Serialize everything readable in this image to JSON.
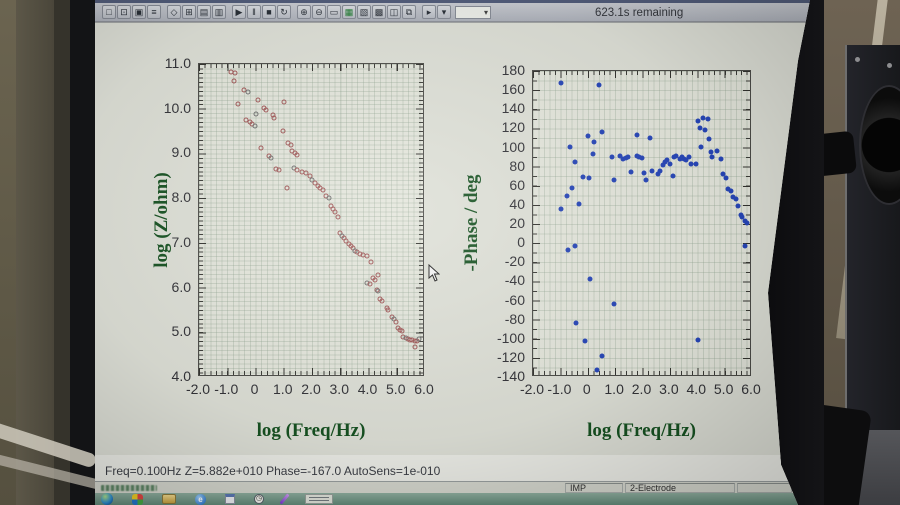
{
  "window": {
    "progress_text": "623.1s remaining",
    "status_text": "Freq=0.100Hz  Z=5.882e+010  Phase=-167.0  AutoSens=1e-010",
    "footer": {
      "left_field": "IMP",
      "right_field": "2-Electrode"
    }
  },
  "toolbar": {
    "buttons": [
      {
        "name": "new-button",
        "glyph": "□"
      },
      {
        "name": "open-button",
        "glyph": "⊡"
      },
      {
        "name": "save-button",
        "glyph": "▣"
      },
      {
        "name": "print-button",
        "glyph": "≡",
        "gap_after": true
      },
      {
        "name": "profile-button",
        "glyph": "◇"
      },
      {
        "name": "setup-button",
        "glyph": "⊞"
      },
      {
        "name": "cell-button",
        "glyph": "▤"
      },
      {
        "name": "meter-button",
        "glyph": "▥",
        "gap_after": true
      },
      {
        "name": "run-button",
        "glyph": "▶"
      },
      {
        "name": "pause-button",
        "glyph": "‖"
      },
      {
        "name": "stop-button",
        "glyph": "■"
      },
      {
        "name": "repeat-button",
        "glyph": "↻",
        "gap_after": true
      },
      {
        "name": "zoom-in-button",
        "glyph": "⊕"
      },
      {
        "name": "zoom-out-button",
        "glyph": "⊖"
      },
      {
        "name": "axes-button",
        "glyph": "▭"
      },
      {
        "name": "overlay-button",
        "glyph": "▦",
        "color": "#1d7a2e"
      },
      {
        "name": "hatch-graph-button",
        "glyph": "▧"
      },
      {
        "name": "grid-graph-button",
        "glyph": "▩"
      },
      {
        "name": "tile-button",
        "glyph": "◫"
      },
      {
        "name": "copy-button",
        "glyph": "⧉",
        "gap_after": true
      },
      {
        "name": "info-button",
        "glyph": "▸"
      },
      {
        "name": "options-button",
        "glyph": "▾"
      }
    ],
    "dropdown_glyph": "▾"
  },
  "taskbar": {
    "icons": [
      {
        "name": "start-button",
        "style": "orb",
        "glyph": ""
      },
      {
        "name": "media-player-icon",
        "style": "media",
        "glyph": ""
      },
      {
        "name": "folder-icon",
        "style": "folder",
        "glyph": ""
      },
      {
        "name": "browser-icon",
        "style": "globe",
        "glyph": "e"
      },
      {
        "name": "notepad-icon",
        "style": "windowic",
        "glyph": ""
      },
      {
        "name": "clock-icon",
        "style": "clock",
        "glyph": "◷"
      },
      {
        "name": "pen-icon",
        "style": "pen",
        "glyph": ""
      },
      {
        "name": "tray-widget",
        "style": "chip",
        "glyph": ""
      }
    ]
  },
  "chart_data": [
    {
      "type": "scatter",
      "title": "",
      "xlabel": "log (Freq/Hz)",
      "ylabel": "log (Z/ohm)",
      "xlim": [
        -2.0,
        6.0
      ],
      "ylim": [
        4.0,
        11.0
      ],
      "xticks": [
        "-2.0",
        "-1.0",
        "0",
        "1.0",
        "2.0",
        "3.0",
        "4.0",
        "5.0",
        "6.0"
      ],
      "yticks": [
        "11.0",
        "10.0",
        "9.0",
        "8.0",
        "7.0",
        "6.0",
        "5.0",
        "4.0"
      ],
      "grid": true,
      "legend": "none",
      "marker": "open",
      "color": "#a05656",
      "alt_color": "#6f6f6f",
      "points": [
        [
          -0.85,
          10.82
        ],
        [
          -0.72,
          10.8
        ],
        [
          -0.76,
          10.62
        ],
        [
          -0.4,
          10.42
        ],
        [
          -0.25,
          10.36
        ],
        [
          -0.6,
          10.1
        ],
        [
          0.1,
          10.19
        ],
        [
          0.33,
          10.01
        ],
        [
          0.41,
          9.96
        ],
        [
          1.04,
          10.15
        ],
        [
          0.04,
          9.87
        ],
        [
          0.63,
          9.86
        ],
        [
          0.69,
          9.78
        ],
        [
          -0.32,
          9.74
        ],
        [
          -0.18,
          9.7
        ],
        [
          -0.1,
          9.65
        ],
        [
          0.0,
          9.6
        ],
        [
          1.0,
          9.49
        ],
        [
          1.19,
          9.23
        ],
        [
          1.27,
          9.18
        ],
        [
          0.21,
          9.1
        ],
        [
          0.5,
          8.92
        ],
        [
          0.56,
          8.89
        ],
        [
          1.33,
          9.04
        ],
        [
          1.42,
          9.0
        ],
        [
          1.5,
          8.96
        ],
        [
          0.74,
          8.64
        ],
        [
          0.86,
          8.61
        ],
        [
          1.39,
          8.67
        ],
        [
          1.49,
          8.61
        ],
        [
          1.69,
          8.57
        ],
        [
          1.81,
          8.55
        ],
        [
          1.13,
          8.2
        ],
        [
          1.95,
          8.47
        ],
        [
          2.05,
          8.4
        ],
        [
          2.15,
          8.32
        ],
        [
          2.25,
          8.26
        ],
        [
          2.33,
          8.21
        ],
        [
          2.42,
          8.16
        ],
        [
          2.52,
          8.02
        ],
        [
          2.63,
          7.99
        ],
        [
          2.7,
          7.8
        ],
        [
          2.79,
          7.73
        ],
        [
          2.87,
          7.66
        ],
        [
          2.95,
          7.55
        ],
        [
          3.04,
          7.19
        ],
        [
          3.1,
          7.12
        ],
        [
          3.18,
          7.08
        ],
        [
          3.26,
          7.01
        ],
        [
          3.34,
          6.95
        ],
        [
          3.42,
          6.9
        ],
        [
          3.5,
          6.85
        ],
        [
          3.58,
          6.8
        ],
        [
          3.66,
          6.76
        ],
        [
          3.75,
          6.72
        ],
        [
          3.85,
          6.7
        ],
        [
          3.99,
          6.68
        ],
        [
          4.14,
          6.55
        ],
        [
          3.99,
          6.07
        ],
        [
          4.1,
          6.05
        ],
        [
          4.22,
          6.18
        ],
        [
          4.28,
          6.14
        ],
        [
          4.4,
          6.26
        ],
        [
          4.34,
          5.92
        ],
        [
          4.4,
          5.88
        ],
        [
          4.48,
          5.7
        ],
        [
          4.55,
          5.66
        ],
        [
          4.7,
          5.51
        ],
        [
          4.76,
          5.46
        ],
        [
          4.9,
          5.3
        ],
        [
          4.97,
          5.25
        ],
        [
          5.05,
          5.2
        ],
        [
          5.1,
          5.06
        ],
        [
          5.18,
          5.02
        ],
        [
          5.25,
          4.99
        ],
        [
          5.3,
          4.86
        ],
        [
          5.4,
          4.83
        ],
        [
          5.48,
          4.8
        ],
        [
          5.55,
          4.79
        ],
        [
          5.62,
          4.78
        ],
        [
          5.7,
          4.77
        ],
        [
          5.78,
          4.76
        ],
        [
          5.85,
          4.8
        ],
        [
          5.73,
          4.62
        ]
      ]
    },
    {
      "type": "scatter",
      "title": "",
      "xlabel": "log (Freq/Hz)",
      "ylabel": "-Phase / deg",
      "xlim": [
        -2.0,
        6.0
      ],
      "ylim": [
        -140,
        180
      ],
      "xticks": [
        "-2.0",
        "-1.0",
        "0",
        "1.0",
        "2.0",
        "3.0",
        "4.0",
        "5.0",
        "6.0"
      ],
      "yticks": [
        "180",
        "160",
        "140",
        "120",
        "100",
        "80",
        "60",
        "40",
        "20",
        "0",
        "-20",
        "-40",
        "-60",
        "-80",
        "-100",
        "-120",
        "-140"
      ],
      "grid": true,
      "legend": "none",
      "marker": "fill",
      "color": "#2746b8",
      "points": [
        [
          -0.95,
          167
        ],
        [
          0.45,
          165
        ],
        [
          -0.65,
          100
        ],
        [
          -0.45,
          84
        ],
        [
          -0.75,
          48
        ],
        [
          -0.95,
          35
        ],
        [
          -0.3,
          40
        ],
        [
          -0.55,
          57
        ],
        [
          -0.15,
          68
        ],
        [
          0.02,
          112
        ],
        [
          0.24,
          105
        ],
        [
          0.21,
          93
        ],
        [
          0.55,
          116
        ],
        [
          0.08,
          67
        ],
        [
          0.9,
          89
        ],
        [
          1.0,
          65
        ],
        [
          1.2,
          91
        ],
        [
          1.33,
          87
        ],
        [
          1.42,
          88
        ],
        [
          1.5,
          89
        ],
        [
          1.6,
          74
        ],
        [
          1.84,
          91
        ],
        [
          1.9,
          89
        ],
        [
          2.0,
          88
        ],
        [
          1.84,
          113
        ],
        [
          2.3,
          110
        ],
        [
          2.1,
          73
        ],
        [
          2.15,
          65
        ],
        [
          2.4,
          75
        ],
        [
          2.6,
          72
        ],
        [
          2.67,
          75
        ],
        [
          2.8,
          81
        ],
        [
          2.85,
          84
        ],
        [
          2.94,
          86
        ],
        [
          3.04,
          82
        ],
        [
          3.16,
          70
        ],
        [
          3.18,
          89
        ],
        [
          3.28,
          91
        ],
        [
          3.43,
          87
        ],
        [
          3.5,
          89
        ],
        [
          3.58,
          87
        ],
        [
          3.65,
          86
        ],
        [
          3.74,
          89
        ],
        [
          3.83,
          82
        ],
        [
          4.01,
          82
        ],
        [
          4.07,
          127
        ],
        [
          4.15,
          120
        ],
        [
          4.25,
          131
        ],
        [
          4.2,
          100
        ],
        [
          4.35,
          118
        ],
        [
          4.45,
          129
        ],
        [
          4.5,
          108
        ],
        [
          4.55,
          95
        ],
        [
          4.6,
          90
        ],
        [
          4.8,
          96
        ],
        [
          4.92,
          87
        ],
        [
          5.02,
          72
        ],
        [
          5.1,
          67
        ],
        [
          5.19,
          56
        ],
        [
          5.29,
          54
        ],
        [
          5.37,
          47
        ],
        [
          5.47,
          45
        ],
        [
          5.55,
          38
        ],
        [
          5.65,
          28
        ],
        [
          5.71,
          26
        ],
        [
          5.8,
          22
        ],
        [
          5.9,
          20
        ],
        [
          -0.7,
          -8
        ],
        [
          -0.45,
          -4
        ],
        [
          0.1,
          -39
        ],
        [
          1.0,
          -65
        ],
        [
          -0.4,
          -85
        ],
        [
          -0.1,
          -104
        ],
        [
          0.55,
          -120
        ],
        [
          0.35,
          -135
        ],
        [
          4.1,
          -103
        ],
        [
          5.8,
          -4
        ]
      ]
    }
  ]
}
